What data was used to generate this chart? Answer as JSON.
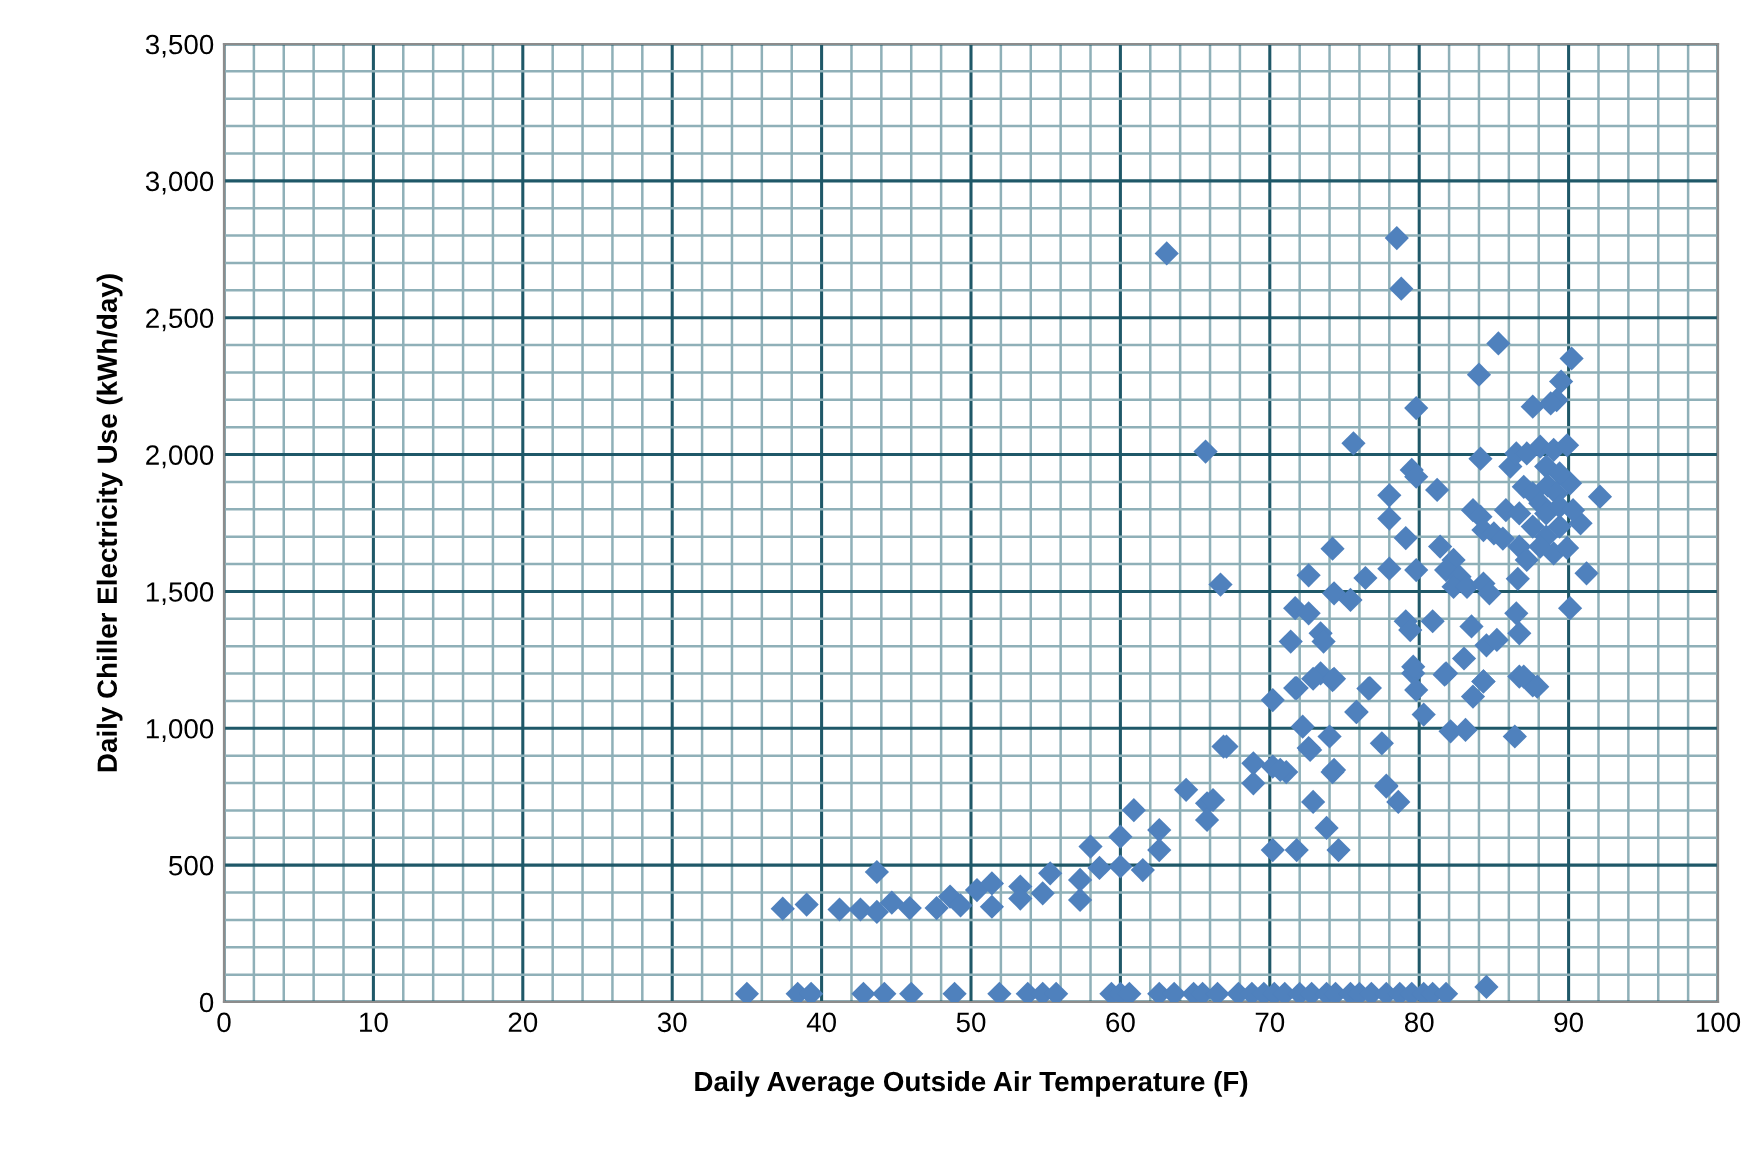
{
  "chart_data": {
    "type": "scatter",
    "xlabel": "Daily Average Outside Air Temperature (F)",
    "ylabel": "Daily Chiller Electricity Use (kWh/day)",
    "marker": "diamond",
    "grid": true,
    "legend": false,
    "xlim": [
      0,
      100
    ],
    "ylim": [
      0,
      3500
    ],
    "xticks": [
      0,
      {
        "value": 2,
        "label": null
      },
      {
        "value": 4,
        "label": null
      },
      {
        "value": 6,
        "label": null
      },
      {
        "value": 8,
        "label": null
      },
      10,
      {
        "value": 12,
        "label": null
      },
      {
        "value": 14,
        "label": null
      },
      {
        "value": 16,
        "label": null
      },
      {
        "value": 18,
        "label": null
      },
      20,
      {
        "value": 22,
        "label": null
      },
      {
        "value": 24,
        "label": null
      },
      {
        "value": 26,
        "label": null
      },
      {
        "value": 28,
        "label": null
      },
      30,
      {
        "value": 32,
        "label": null
      },
      {
        "value": 34,
        "label": null
      },
      {
        "value": 36,
        "label": null
      },
      {
        "value": 38,
        "label": null
      },
      40,
      {
        "value": 42,
        "label": null
      },
      {
        "value": 44,
        "label": null
      },
      {
        "value": 46,
        "label": null
      },
      {
        "value": 48,
        "label": null
      },
      50,
      {
        "value": 52,
        "label": null
      },
      {
        "value": 54,
        "label": null
      },
      {
        "value": 56,
        "label": null
      },
      {
        "value": 58,
        "label": null
      },
      60,
      {
        "value": 62,
        "label": null
      },
      {
        "value": 64,
        "label": null
      },
      {
        "value": 66,
        "label": null
      },
      {
        "value": 68,
        "label": null
      },
      70,
      {
        "value": 72,
        "label": null
      },
      {
        "value": 74,
        "label": null
      },
      {
        "value": 76,
        "label": null
      },
      {
        "value": 78,
        "label": null
      },
      80,
      {
        "value": 82,
        "label": null
      },
      {
        "value": 84,
        "label": null
      },
      {
        "value": 86,
        "label": null
      },
      {
        "value": 88,
        "label": null
      },
      90,
      {
        "value": 92,
        "label": null
      },
      {
        "value": 94,
        "label": null
      },
      {
        "value": 96,
        "label": null
      },
      {
        "value": 98,
        "label": null
      },
      100
    ],
    "yticks": [
      0,
      {
        "value": 100,
        "label": null
      },
      {
        "value": 200,
        "label": null
      },
      {
        "value": 300,
        "label": null
      },
      {
        "value": 400,
        "label": null
      },
      500,
      {
        "value": 600,
        "label": null
      },
      {
        "value": 700,
        "label": null
      },
      {
        "value": 800,
        "label": null
      },
      {
        "value": 900,
        "label": null
      },
      {
        "value": 1000,
        "label": "1,000"
      },
      {
        "value": 1100,
        "label": null
      },
      {
        "value": 1200,
        "label": null
      },
      {
        "value": 1300,
        "label": null
      },
      {
        "value": 1400,
        "label": null
      },
      {
        "value": 1500,
        "label": "1,500"
      },
      {
        "value": 1600,
        "label": null
      },
      {
        "value": 1700,
        "label": null
      },
      {
        "value": 1800,
        "label": null
      },
      {
        "value": 1900,
        "label": null
      },
      {
        "value": 2000,
        "label": "2,000"
      },
      {
        "value": 2100,
        "label": null
      },
      {
        "value": 2200,
        "label": null
      },
      {
        "value": 2300,
        "label": null
      },
      {
        "value": 2400,
        "label": null
      },
      {
        "value": 2500,
        "label": "2,500"
      },
      {
        "value": 2600,
        "label": null
      },
      {
        "value": 2700,
        "label": null
      },
      {
        "value": 2800,
        "label": null
      },
      {
        "value": 2900,
        "label": null
      },
      {
        "value": 3000,
        "label": "3,000"
      },
      {
        "value": 3100,
        "label": null
      },
      {
        "value": 3200,
        "label": null
      },
      {
        "value": 3300,
        "label": null
      },
      {
        "value": 3400,
        "label": null
      },
      {
        "value": 3500,
        "label": "3,500"
      }
    ],
    "series": [
      {
        "color": "#4f81bd",
        "x": [
          35,
          38.4,
          39.3,
          42.8,
          44.2,
          46,
          48.9,
          51.9,
          53.8,
          54.8,
          55.7,
          59.4,
          60,
          60.6,
          62.6,
          63.6,
          64.9,
          65.5,
          66.5,
          67.9,
          68.8,
          69.6,
          70.3,
          71,
          72,
          72.8,
          73.8,
          74.4,
          75.4,
          76,
          76.8,
          77.8,
          78.7,
          79.5,
          80.3,
          80.9,
          81.8,
          84.5,
          37.4,
          39,
          41.2,
          42.6,
          43.7,
          43.7,
          44.7,
          45.9,
          47.7,
          48.6,
          49.3,
          50.4,
          51.4,
          51.4,
          53.3,
          53.3,
          54.8,
          55.3,
          57.3,
          57.3,
          58,
          58.6,
          60,
          60,
          60.9,
          61.5,
          62.6,
          62.6,
          64.4,
          65.8,
          65.8,
          66.9,
          68.9,
          68.9,
          70.2,
          70.2,
          71.8,
          73.4,
          74.2,
          76.7,
          75.8,
          72.2,
          74,
          72.6,
          67.1,
          70.2,
          71.1,
          74.2,
          66.2,
          72.9,
          73.8,
          77.8,
          78.6,
          77.5,
          71.8,
          74.6,
          80.3,
          82.1,
          83.1,
          86.4,
          79.6,
          81.8,
          83.6,
          84.3,
          86.7,
          87.6,
          63.1,
          78.5,
          78.8,
          65.7,
          66.7,
          75.6,
          79.8,
          85.3,
          84,
          90.2,
          89.5,
          89.2,
          87.6,
          84.1,
          79.5,
          79.8,
          81.2,
          78,
          78,
          79.1,
          74.2,
          72.6,
          76.4,
          78,
          79.8,
          74.3,
          75.4,
          71.7,
          72.6,
          71.4,
          73.4,
          73.6,
          71.7,
          72.9,
          74.3,
          72.7,
          74.3,
          75.8,
          76.6,
          77.8,
          79.1,
          79.4,
          79.6,
          79.8,
          80.9,
          81.7,
          83,
          83.5,
          84.3,
          84.5,
          85.2,
          87,
          87.9,
          86.7,
          86.5,
          86.6,
          90.1,
          91.2,
          92.1,
          70.7,
          88.8,
          81.4,
          82.3,
          81.8,
          82.7,
          82.3,
          83.2,
          83.6,
          84.1,
          84.3,
          85,
          84.3,
          84.7,
          85.6,
          85.8,
          86.1,
          86.5,
          87.2,
          88.1,
          89,
          89.9,
          87,
          87.6,
          88.1,
          88.5,
          86.7,
          87.6,
          88.5,
          89.4,
          90.1,
          90.8,
          88.1,
          89,
          89.9,
          86.7,
          87.2,
          88.5,
          89.4,
          88.6,
          89.2,
          89.4,
          90.3
        ],
        "values": [
          30,
          30,
          30,
          30,
          30,
          30,
          30,
          30,
          30,
          30,
          30,
          30,
          30,
          30,
          30,
          30,
          30,
          30,
          30,
          30,
          30,
          30,
          30,
          30,
          30,
          30,
          30,
          30,
          30,
          30,
          30,
          30,
          30,
          30,
          30,
          30,
          30,
          55,
          341,
          356,
          338,
          338,
          475,
          329,
          363,
          343,
          343,
          385,
          353,
          409,
          433,
          348,
          422,
          378,
          397,
          470,
          446,
          373,
          568,
          490,
          495,
          604,
          701,
          482,
          628,
          555,
          775,
          726,
          665,
          933,
          872,
          799,
          1103,
          555,
          1147,
          1201,
          1176,
          1147,
          1060,
          1006,
          970,
          928,
          933,
          860,
          840,
          840,
          738,
          731,
          636,
          787,
          731,
          945,
          555,
          555,
          1050,
          989,
          994,
          970,
          1201,
          1201,
          1116,
          1171,
          1189,
          1157,
          2735,
          2791,
          2606,
          2011,
          1525,
          2041,
          2170,
          2406,
          2292,
          2351,
          2267,
          2199,
          2175,
          1985,
          1944,
          1919,
          1871,
          1851,
          1766,
          1695,
          1656,
          1559,
          1549,
          1583,
          1578,
          1493,
          1469,
          1439,
          1420,
          1317,
          1347,
          1317,
          1147,
          1181,
          1181,
          921,
          848,
          1059,
          1145,
          791,
          1391,
          1359,
          1225,
          1140,
          1391,
          1196,
          1255,
          1372,
          1171,
          1303,
          1323,
          1189,
          1152,
          1347,
          1420,
          1546,
          1439,
          1566,
          1846,
          848,
          2187,
          1664,
          1615,
          1578,
          1554,
          1517,
          1517,
          1797,
          1773,
          1724,
          1712,
          1529,
          1493,
          1693,
          1797,
          1956,
          2004,
          2004,
          2029,
          2017,
          2034,
          1882,
          1858,
          1822,
          1785,
          1785,
          1737,
          1700,
          1737,
          1895,
          1749,
          1664,
          1639,
          1659,
          1664,
          1615,
          1956,
          1931,
          1887,
          1858,
          1810,
          1797
        ]
      }
    ]
  }
}
